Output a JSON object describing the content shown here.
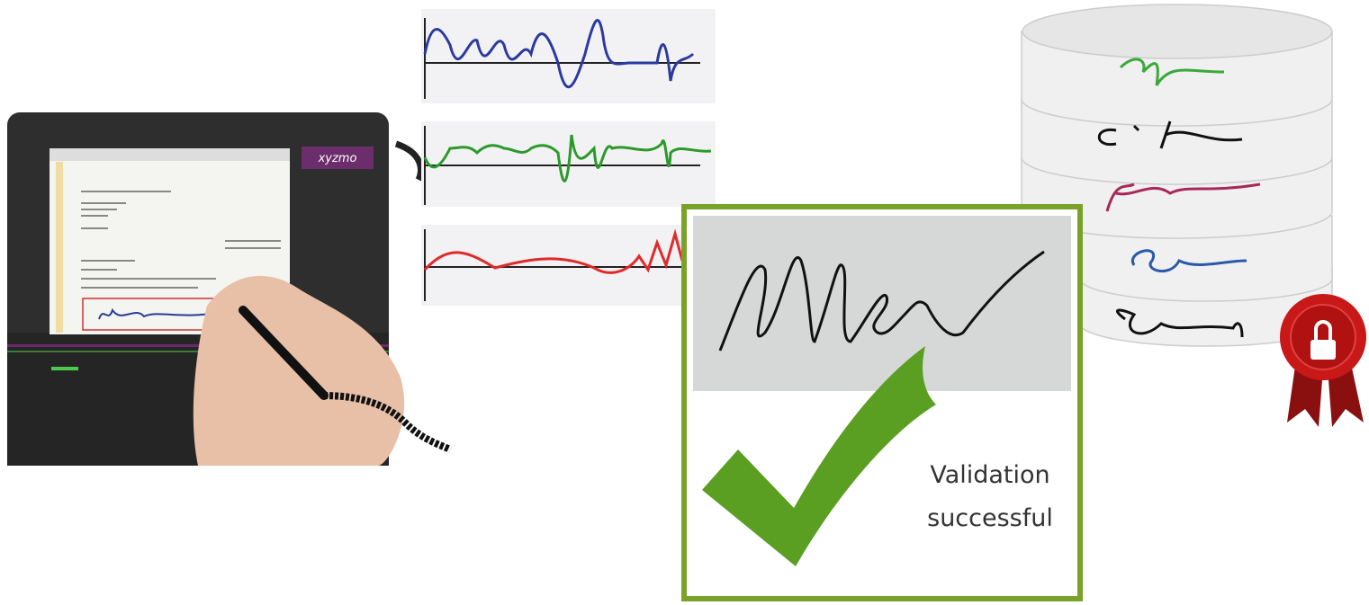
{
  "tablet": {
    "brand": "xyzmo"
  },
  "validation": {
    "line1": "Validation",
    "line2": "successful"
  }
}
